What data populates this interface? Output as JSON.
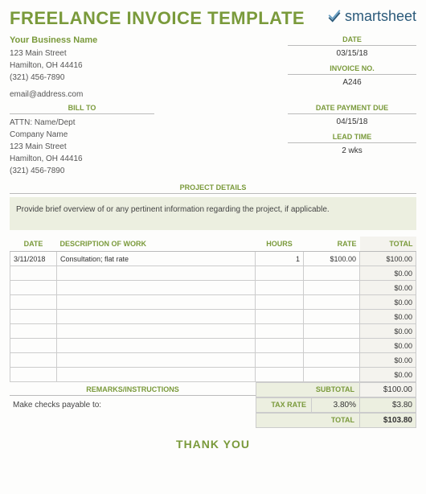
{
  "colors": {
    "accent": "#7a9a3b",
    "logo_blue": "#2b5a7a",
    "shade_bg": "#ecefe0",
    "shade_light": "#f4f3ee",
    "border": "#cccccc"
  },
  "title": "FREELANCE INVOICE TEMPLATE",
  "logo": {
    "text": "smartsheet"
  },
  "business": {
    "name": "Your Business Name",
    "street": "123 Main Street",
    "city": "Hamilton, OH 44416",
    "phone": "(321) 456-7890",
    "email": "email@address.com"
  },
  "meta": {
    "date_label": "DATE",
    "date_value": "03/15/18",
    "invoice_no_label": "INVOICE NO.",
    "invoice_no_value": "A246",
    "due_label": "DATE PAYMENT DUE",
    "due_value": "04/15/18",
    "lead_label": "LEAD TIME",
    "lead_value": "2 wks"
  },
  "bill_to": {
    "header": "BILL TO",
    "attn": "ATTN: Name/Dept",
    "company": "Company Name",
    "street": "123 Main Street",
    "city": "Hamilton, OH 44416",
    "phone": "(321) 456-7890"
  },
  "project": {
    "header": "PROJECT DETAILS",
    "text": "Provide brief overview of or any pertinent information regarding the project, if applicable."
  },
  "table": {
    "headers": {
      "date": "DATE",
      "desc": "DESCRIPTION OF WORK",
      "hours": "HOURS",
      "rate": "RATE",
      "total": "TOTAL"
    },
    "rows": [
      {
        "date": "3/11/2018",
        "desc": "Consultation; flat rate",
        "hours": "1",
        "rate": "$100.00",
        "total": "$100.00"
      },
      {
        "date": "",
        "desc": "",
        "hours": "",
        "rate": "",
        "total": "$0.00"
      },
      {
        "date": "",
        "desc": "",
        "hours": "",
        "rate": "",
        "total": "$0.00"
      },
      {
        "date": "",
        "desc": "",
        "hours": "",
        "rate": "",
        "total": "$0.00"
      },
      {
        "date": "",
        "desc": "",
        "hours": "",
        "rate": "",
        "total": "$0.00"
      },
      {
        "date": "",
        "desc": "",
        "hours": "",
        "rate": "",
        "total": "$0.00"
      },
      {
        "date": "",
        "desc": "",
        "hours": "",
        "rate": "",
        "total": "$0.00"
      },
      {
        "date": "",
        "desc": "",
        "hours": "",
        "rate": "",
        "total": "$0.00"
      },
      {
        "date": "",
        "desc": "",
        "hours": "",
        "rate": "",
        "total": "$0.00"
      }
    ]
  },
  "remarks": {
    "header": "REMARKS/INSTRUCTIONS",
    "text": "Make checks payable to:"
  },
  "totals": {
    "subtotal_label": "SUBTOTAL",
    "subtotal_value": "$100.00",
    "tax_label": "TAX RATE",
    "tax_rate": "3.80%",
    "tax_value": "$3.80",
    "total_label": "TOTAL",
    "total_value": "$103.80"
  },
  "thanks": "THANK YOU"
}
